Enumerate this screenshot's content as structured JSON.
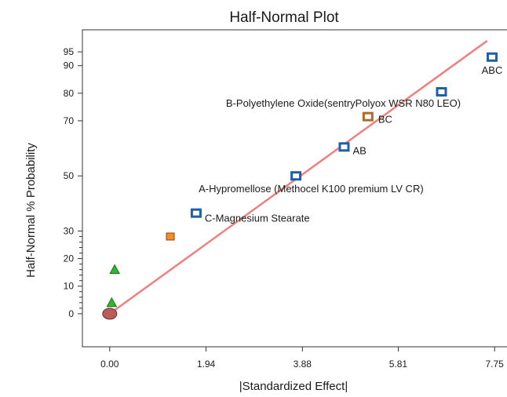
{
  "chart_data": {
    "type": "scatter",
    "title": "Half-Normal Plot",
    "xlabel": "|Standardized Effect|",
    "ylabel": "Half-Normal % Probability",
    "xlim": [
      -0.55,
      8.0
    ],
    "xticks": [
      0.0,
      1.94,
      3.88,
      5.81,
      7.75
    ],
    "xtick_labels": [
      "0.00",
      "1.94",
      "3.88",
      "5.81",
      "7.75"
    ],
    "ylim": [
      -12,
      103
    ],
    "yticks": [
      0,
      10,
      20,
      30,
      50,
      70,
      80,
      90,
      95
    ],
    "ytick_labels": [
      "0",
      "10",
      "20",
      "30",
      "50",
      "70",
      "80",
      "90",
      "95"
    ],
    "grid": false,
    "reference_line": {
      "x": [
        0.0,
        7.6
      ],
      "y": [
        0,
        99
      ],
      "color": "#f08080"
    },
    "points": [
      {
        "label": "ABC",
        "x": 7.7,
        "y": 93.1,
        "marker": "square",
        "color": "#1f5fa8"
      },
      {
        "label": "B-Polyethylene Oxide(sentryPolyox WSR N80 LEO)",
        "x": 6.68,
        "y": 80.5,
        "marker": "square",
        "color": "#1f5fa8"
      },
      {
        "label": "BC",
        "x": 5.2,
        "y": 71.5,
        "marker": "square",
        "color": "#b06a28"
      },
      {
        "label": "AB",
        "x": 4.72,
        "y": 60.5,
        "marker": "square",
        "color": "#1f5fa8"
      },
      {
        "label": "A-Hypromellose (Methocel K100 premium LV CR)",
        "x": 3.75,
        "y": 50,
        "marker": "square",
        "color": "#1f5fa8"
      },
      {
        "label": "C-Magnesium Stearate",
        "x": 1.74,
        "y": 36.5,
        "marker": "square",
        "color": "#1f5fa8"
      },
      {
        "label": "",
        "x": 1.22,
        "y": 28,
        "marker": "filled-square",
        "color": "#f28c28"
      },
      {
        "label": "",
        "x": 0.1,
        "y": 16,
        "marker": "triangle",
        "color": "#2eb82e"
      },
      {
        "label": "",
        "x": 0.04,
        "y": 4,
        "marker": "triangle",
        "color": "#2eb82e"
      },
      {
        "label": "",
        "x": 0.0,
        "y": 0,
        "marker": "circle",
        "color": "#b85c5c"
      }
    ]
  }
}
